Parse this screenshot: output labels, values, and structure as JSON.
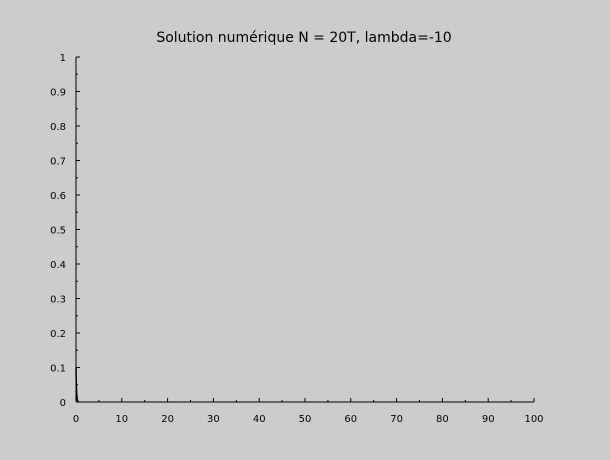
{
  "chart_data": {
    "type": "line",
    "title": "Solution numérique N = 20T, lambda=-10",
    "xlabel": "",
    "ylabel": "",
    "xlim": [
      0,
      100
    ],
    "ylim": [
      0,
      1
    ],
    "xticks": [
      "0",
      "10",
      "20",
      "30",
      "40",
      "50",
      "60",
      "70",
      "80",
      "90",
      "100"
    ],
    "yticks": [
      "0",
      "0.1",
      "0.2",
      "0.3",
      "0.4",
      "0.5",
      "0.6",
      "0.7",
      "0.8",
      "0.9",
      "1"
    ],
    "grid": false,
    "background": "#cccccc",
    "series": [
      {
        "color": "#000000",
        "x": [
          0,
          0.05,
          0.1,
          0.2,
          0.3,
          0.5
        ],
        "y": [
          0.1,
          0.061,
          0.037,
          0.014,
          0.005,
          0.001
        ]
      }
    ]
  }
}
